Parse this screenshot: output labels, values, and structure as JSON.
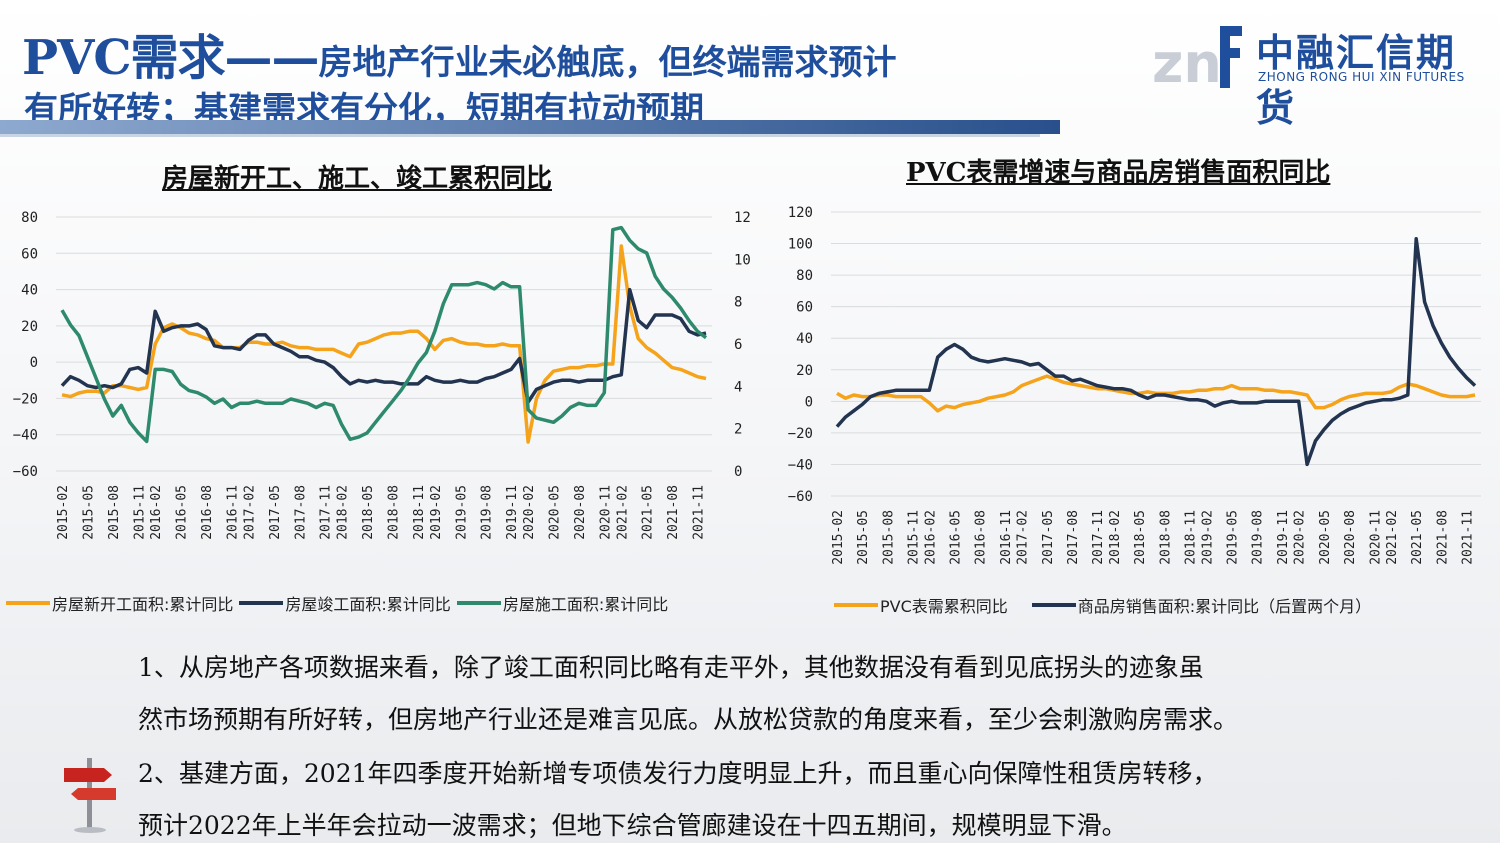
{
  "header": {
    "title_main": "PVC需求——",
    "title_sub": "房地产行业未必触底，但终端需求预计",
    "title_line2": "有所好转；基建需求有分化，短期有拉动预期"
  },
  "logo": {
    "name_cn": "中融汇信期货",
    "name_en": "ZHONG RONG HUI XIN FUTURES"
  },
  "colors": {
    "orange": "#f5a31a",
    "navy": "#22344f",
    "teal": "#2e8a6c",
    "brand": "#1f4e9c"
  },
  "chart_data": [
    {
      "type": "line",
      "title": "房屋新开工、施工、竣工累积同比",
      "x": [
        "2015-02",
        "2015-03",
        "2015-04",
        "2015-05",
        "2015-06",
        "2015-07",
        "2015-08",
        "2015-09",
        "2015-10",
        "2015-11",
        "2015-12",
        "2016-02",
        "2016-03",
        "2016-04",
        "2016-05",
        "2016-06",
        "2016-07",
        "2016-08",
        "2016-09",
        "2016-10",
        "2016-11",
        "2016-12",
        "2017-02",
        "2017-03",
        "2017-04",
        "2017-05",
        "2017-06",
        "2017-07",
        "2017-08",
        "2017-09",
        "2017-10",
        "2017-11",
        "2017-12",
        "2018-02",
        "2018-03",
        "2018-04",
        "2018-05",
        "2018-06",
        "2018-07",
        "2018-08",
        "2018-09",
        "2018-10",
        "2018-11",
        "2018-12",
        "2019-02",
        "2019-03",
        "2019-04",
        "2019-05",
        "2019-06",
        "2019-07",
        "2019-08",
        "2019-09",
        "2019-10",
        "2019-11",
        "2019-12",
        "2020-02",
        "2020-03",
        "2020-04",
        "2020-05",
        "2020-06",
        "2020-07",
        "2020-08",
        "2020-09",
        "2020-10",
        "2020-11",
        "2020-12",
        "2021-02",
        "2021-03",
        "2021-04",
        "2021-05",
        "2021-06",
        "2021-07",
        "2021-08",
        "2021-09",
        "2021-10",
        "2021-11",
        "2021-12"
      ],
      "xtick_labels": [
        "2015-02",
        "2015-05",
        "2015-08",
        "2015-11",
        "2016-02",
        "2016-05",
        "2016-08",
        "2016-11",
        "2017-02",
        "2017-05",
        "2017-08",
        "2017-11",
        "2018-02",
        "2018-05",
        "2018-08",
        "2018-11",
        "2019-02",
        "2019-05",
        "2019-08",
        "2019-11",
        "2020-02",
        "2020-05",
        "2020-08",
        "2020-11",
        "2021-02",
        "2021-05",
        "2021-08",
        "2021-11"
      ],
      "ylim_left": [
        -60,
        80
      ],
      "yticks_left": [
        "80",
        "60",
        "40",
        "20",
        "0",
        "−20",
        "−40",
        "−60"
      ],
      "ylim_right": [
        0,
        12
      ],
      "yticks_right": [
        "12",
        "10",
        "8",
        "6",
        "4",
        "2",
        "0"
      ],
      "series": [
        {
          "name": "房屋新开工面积:累计同比",
          "axis": "left",
          "color": "#f5a31a",
          "values": [
            -18,
            -19,
            -17,
            -16,
            -16,
            -17,
            -13,
            -13,
            -14,
            -15,
            -14,
            10,
            19,
            21,
            19,
            16,
            15,
            13,
            12,
            8,
            8,
            8,
            11,
            11,
            10,
            10,
            11,
            9,
            8,
            8,
            7,
            7,
            7,
            5,
            3,
            10,
            11,
            13,
            15,
            16,
            16,
            17,
            17,
            13,
            7,
            12,
            13,
            11,
            10,
            10,
            9,
            9,
            10,
            9,
            9,
            -44,
            -20,
            -10,
            -5,
            -4,
            -3,
            -3,
            -2,
            -2,
            -1,
            -1,
            64,
            31,
            13,
            8,
            5,
            1,
            -3,
            -4,
            -6,
            -8,
            -9
          ]
        },
        {
          "name": "房屋竣工面积:累计同比",
          "axis": "left",
          "color": "#22344f",
          "values": [
            -13,
            -8,
            -10,
            -13,
            -14,
            -13,
            -14,
            -12,
            -4,
            -3,
            -6,
            28,
            17,
            19,
            20,
            20,
            21,
            18,
            9,
            8,
            8,
            7,
            12,
            15,
            15,
            10,
            8,
            6,
            3,
            3,
            1,
            0,
            -3,
            -8,
            -12,
            -10,
            -11,
            -10,
            -11,
            -11,
            -12,
            -12,
            -12,
            -8,
            -10,
            -11,
            -11,
            -10,
            -11,
            -11,
            -9,
            -8,
            -6,
            -4,
            2,
            -22,
            -15,
            -13,
            -11,
            -10,
            -10,
            -11,
            -10,
            -10,
            -10,
            -8,
            -7,
            40,
            23,
            19,
            26,
            26,
            26,
            24,
            17,
            15,
            16
          ]
        },
        {
          "name": "房屋施工面积:累计同比",
          "axis": "right",
          "color": "#2e8a6c",
          "values": [
            7.6,
            6.9,
            6.4,
            5.4,
            4.4,
            3.4,
            2.6,
            3.1,
            2.3,
            1.8,
            1.4,
            4.8,
            4.8,
            4.7,
            4.1,
            3.8,
            3.7,
            3.5,
            3.2,
            3.4,
            3.0,
            3.2,
            3.2,
            3.3,
            3.2,
            3.2,
            3.2,
            3.4,
            3.3,
            3.2,
            3.0,
            3.2,
            3.1,
            2.2,
            1.5,
            1.6,
            1.8,
            2.3,
            2.8,
            3.3,
            3.8,
            4.4,
            5.1,
            5.6,
            6.6,
            7.9,
            8.8,
            8.8,
            8.8,
            8.9,
            8.8,
            8.6,
            8.9,
            8.7,
            8.7,
            2.9,
            2.5,
            2.4,
            2.3,
            2.6,
            3.0,
            3.2,
            3.1,
            3.1,
            3.7,
            11.4,
            11.5,
            10.9,
            10.5,
            10.3,
            9.2,
            8.6,
            8.2,
            7.7,
            7.1,
            6.6,
            6.3
          ]
        }
      ]
    },
    {
      "type": "line",
      "title": "PVC表需增速与商品房销售面积同比",
      "x": [
        "2015-02",
        "2015-03",
        "2015-04",
        "2015-05",
        "2015-06",
        "2015-07",
        "2015-08",
        "2015-09",
        "2015-10",
        "2015-11",
        "2015-12",
        "2016-02",
        "2016-03",
        "2016-04",
        "2016-05",
        "2016-06",
        "2016-07",
        "2016-08",
        "2016-09",
        "2016-10",
        "2016-11",
        "2016-12",
        "2017-02",
        "2017-03",
        "2017-04",
        "2017-05",
        "2017-06",
        "2017-07",
        "2017-08",
        "2017-09",
        "2017-10",
        "2017-11",
        "2017-12",
        "2018-02",
        "2018-03",
        "2018-04",
        "2018-05",
        "2018-06",
        "2018-07",
        "2018-08",
        "2018-09",
        "2018-10",
        "2018-11",
        "2018-12",
        "2019-02",
        "2019-03",
        "2019-04",
        "2019-05",
        "2019-06",
        "2019-07",
        "2019-08",
        "2019-09",
        "2019-10",
        "2019-11",
        "2019-12",
        "2020-02",
        "2020-03",
        "2020-04",
        "2020-05",
        "2020-06",
        "2020-07",
        "2020-08",
        "2020-09",
        "2020-10",
        "2020-11",
        "2020-12",
        "2021-02",
        "2021-03",
        "2021-04",
        "2021-05",
        "2021-06",
        "2021-07",
        "2021-08",
        "2021-09",
        "2021-10",
        "2021-11",
        "2021-12"
      ],
      "xtick_labels": [
        "2015-02",
        "2015-05",
        "2015-08",
        "2015-11",
        "2016-02",
        "2016-05",
        "2016-08",
        "2016-11",
        "2017-02",
        "2017-05",
        "2017-08",
        "2017-11",
        "2018-02",
        "2018-05",
        "2018-08",
        "2018-11",
        "2019-02",
        "2019-05",
        "2019-08",
        "2019-11",
        "2020-02",
        "2020-05",
        "2020-08",
        "2020-11",
        "2021-02",
        "2021-05",
        "2021-08",
        "2021-11"
      ],
      "ylim": [
        -60,
        120
      ],
      "yticks": [
        "120",
        "100",
        "80",
        "60",
        "40",
        "20",
        "0",
        "−20",
        "−40",
        "−60"
      ],
      "series": [
        {
          "name": "PVC表需累积同比",
          "color": "#f5a31a",
          "values": [
            5,
            2,
            4,
            3,
            3,
            4,
            4,
            3,
            3,
            3,
            3,
            -1,
            -6,
            -3,
            -4,
            -2,
            -1,
            0,
            2,
            3,
            4,
            6,
            10,
            12,
            14,
            16,
            14,
            12,
            11,
            10,
            9,
            8,
            8,
            7,
            6,
            5,
            5,
            6,
            5,
            5,
            5,
            6,
            6,
            7,
            7,
            8,
            8,
            10,
            8,
            8,
            8,
            7,
            7,
            6,
            6,
            5,
            4,
            -4,
            -4,
            -2,
            1,
            3,
            4,
            5,
            5,
            5,
            6,
            9,
            11,
            10,
            8,
            6,
            4,
            3,
            3,
            3,
            4
          ]
        },
        {
          "name": "商品房销售面积:累计同比（后置两个月）",
          "color": "#22344f",
          "values": [
            -16,
            -10,
            -6,
            -2,
            3,
            5,
            6,
            7,
            7,
            7,
            7,
            7,
            28,
            33,
            36,
            33,
            28,
            26,
            25,
            26,
            27,
            26,
            25,
            23,
            24,
            20,
            16,
            16,
            13,
            14,
            12,
            10,
            9,
            8,
            8,
            7,
            4,
            2,
            4,
            4,
            3,
            2,
            1,
            1,
            0,
            -3,
            -1,
            0,
            -1,
            -1,
            -1,
            0,
            0,
            0,
            0,
            0,
            -40,
            -25,
            -18,
            -12,
            -8,
            -5,
            -3,
            -1,
            0,
            1,
            1,
            2,
            4,
            103,
            63,
            48,
            37,
            28,
            21,
            15,
            10
          ]
        }
      ]
    }
  ],
  "legend_left": [
    "房屋新开工面积:累计同比",
    "房屋竣工面积:累计同比",
    "房屋施工面积:累计同比"
  ],
  "legend_right": [
    "PVC表需累积同比",
    "商品房销售面积:累计同比（后置两个月）"
  ],
  "paragraphs": {
    "p1_line1": "1、从房地产各项数据来看，除了竣工面积同比略有走平外，其他数据没有看到见底拐头的迹象虽",
    "p1_line2": "然市场预期有所好转，但房地产行业还是难言见底。从放松贷款的角度来看，至少会刺激购房需求。",
    "p2_line1": "2、基建方面，2021年四季度开始新增专项债发行力度明显上升，而且重心向保障性租赁房转移，",
    "p2_line2": "预计2022年上半年会拉动一波需求；但地下综合管廊建设在十四五期间，规模明显下滑。"
  }
}
